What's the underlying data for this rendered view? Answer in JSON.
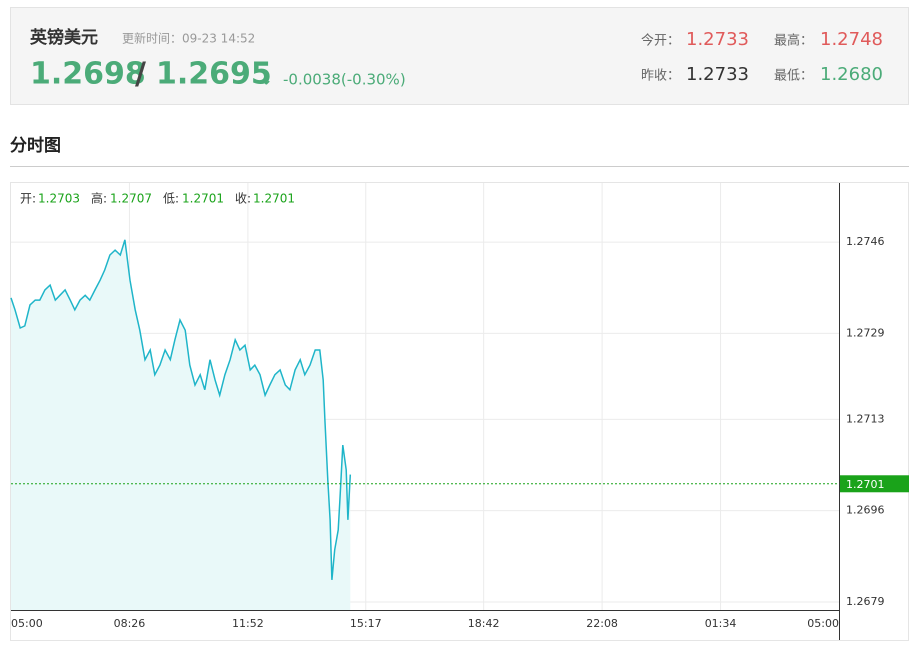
{
  "header": {
    "name": "英镑美元",
    "update": "更新时间：09-23 14:52",
    "bid": "1.2698",
    "slash": "/",
    "ask": "1.2695",
    "arrow": "↓",
    "change": "-0.0038(-0.30%)",
    "open_label": "今开：",
    "open": "1.2733",
    "high_label": "最高：",
    "high": "1.2748",
    "prev_label": "昨收：",
    "prev": "1.2733",
    "low_label": "最低：",
    "low": "1.2680"
  },
  "section_title": "分时图",
  "chart_data": {
    "type": "line",
    "color": "#1fb5c9",
    "fill": "#e9f9f9",
    "grid": true,
    "ohlc": [
      {
        "label": "开:",
        "value": 1.2703
      },
      {
        "label": "高:",
        "value": 1.2707
      },
      {
        "label": "低:",
        "value": 1.2701
      },
      {
        "label": "收:",
        "value": 1.2701
      }
    ],
    "current": 1.2701,
    "current_color": "#1aa31a",
    "xlim": [
      0,
      1440
    ],
    "xticks": [
      {
        "value": 0,
        "label": "05:00"
      },
      {
        "value": 206,
        "label": "08:26"
      },
      {
        "value": 412,
        "label": "11:52"
      },
      {
        "value": 617,
        "label": "15:17"
      },
      {
        "value": 822,
        "label": "18:42"
      },
      {
        "value": 1028,
        "label": "22:08"
      },
      {
        "value": 1234,
        "label": "01:34"
      },
      {
        "value": 1440,
        "label": "05:00"
      }
    ],
    "ylim": [
      1.26775,
      1.2757
    ],
    "yticks": [
      1.2679,
      1.2696,
      1.2713,
      1.2729,
      1.2746
    ],
    "x": [
      0,
      7,
      16,
      24,
      33,
      42,
      50,
      59,
      68,
      77,
      85,
      94,
      103,
      111,
      120,
      129,
      137,
      146,
      155,
      163,
      172,
      181,
      190,
      198,
      207,
      216,
      224,
      233,
      242,
      250,
      259,
      268,
      277,
      285,
      294,
      303,
      311,
      320,
      329,
      337,
      346,
      355,
      363,
      372,
      381,
      390,
      398,
      407,
      416,
      424,
      433,
      442,
      450,
      459,
      468,
      477,
      485,
      494,
      503,
      511,
      520,
      529,
      537,
      543,
      546,
      551,
      555,
      558,
      563,
      569,
      572,
      577,
      583,
      586,
      590
    ],
    "values": [
      1.27356,
      1.27334,
      1.273,
      1.27304,
      1.27343,
      1.27352,
      1.27352,
      1.27371,
      1.2738,
      1.27352,
      1.27361,
      1.27371,
      1.27352,
      1.27334,
      1.27352,
      1.27361,
      1.27352,
      1.27371,
      1.27389,
      1.27408,
      1.27436,
      1.27445,
      1.27436,
      1.27464,
      1.27389,
      1.27334,
      1.27296,
      1.27241,
      1.27259,
      1.27213,
      1.27231,
      1.27259,
      1.27241,
      1.27278,
      1.27315,
      1.27296,
      1.27231,
      1.27194,
      1.27213,
      1.27185,
      1.27241,
      1.27203,
      1.27175,
      1.27213,
      1.27241,
      1.27278,
      1.27259,
      1.27268,
      1.27222,
      1.27231,
      1.27213,
      1.27175,
      1.27194,
      1.27213,
      1.27222,
      1.27194,
      1.27185,
      1.27222,
      1.27241,
      1.27213,
      1.27231,
      1.27259,
      1.27259,
      1.27203,
      1.27129,
      1.27017,
      1.26943,
      1.26831,
      1.26887,
      1.26924,
      1.2698,
      1.27082,
      1.27036,
      1.26943,
      1.27027
    ]
  }
}
